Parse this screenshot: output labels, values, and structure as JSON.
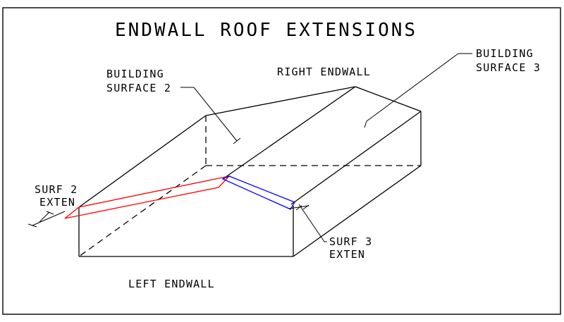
{
  "title": "ENDWALL ROOF EXTENSIONS",
  "labels": {
    "building_surface_2_line1": "BUILDING",
    "building_surface_2_line2": "SURFACE 2",
    "right_endwall": "RIGHT ENDWALL",
    "building_surface_3_line1": "BUILDING",
    "building_surface_3_line2": "SURFACE 3",
    "surf2_exten_line1": "SURF 2",
    "surf2_exten_line2": "EXTEN",
    "surf3_exten_line1": "SURF 3",
    "surf3_exten_line2": "EXTEN",
    "left_endwall": "LEFT ENDWALL"
  },
  "colors": {
    "background": "#ffffff",
    "outline": "#000000",
    "surf2_extension": "#ff0000",
    "surf3_extension": "#0000ff"
  }
}
